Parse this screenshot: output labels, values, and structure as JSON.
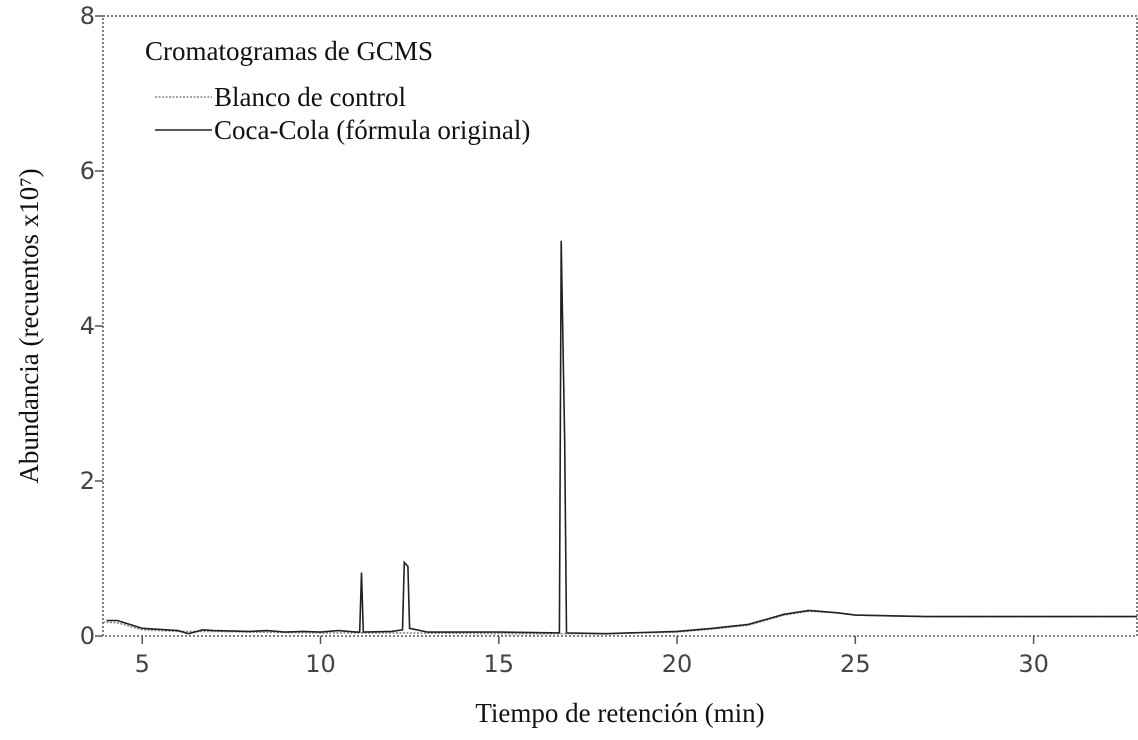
{
  "chart_data": {
    "type": "line",
    "legend_title": "Cromatogramas de GCMS",
    "xlabel": "Tiempo de retención (min)",
    "ylabel": "Abundancia (recuentos x10⁷)",
    "xlim": [
      3.9,
      32.9
    ],
    "xticks": [
      5,
      10,
      15,
      20,
      25,
      30
    ],
    "ylim": [
      0,
      8
    ],
    "yticks": [
      0,
      2,
      4,
      6,
      8
    ],
    "series": [
      {
        "name": "Blanco de control",
        "color": "#888888",
        "style": "dotted",
        "x": [
          3.9,
          4.3,
          5,
          6,
          7,
          8,
          10,
          12,
          15,
          18,
          20,
          21,
          22,
          23,
          23.7,
          24.5,
          25,
          27,
          32.9
        ],
        "values": [
          0.18,
          0.17,
          0.08,
          0.06,
          0.06,
          0.05,
          0.04,
          0.04,
          0.03,
          0.03,
          0.05,
          0.09,
          0.14,
          0.27,
          0.32,
          0.3,
          0.27,
          0.25,
          0.25
        ]
      },
      {
        "name": "Coca-Cola (fórmula original)",
        "color": "#222222",
        "style": "solid",
        "x": [
          4.0,
          4.3,
          5,
          6,
          6.3,
          6.7,
          7,
          8,
          8.5,
          9,
          9.5,
          10,
          10.5,
          11,
          11.1,
          11.15,
          11.2,
          12,
          12.3,
          12.35,
          12.45,
          12.5,
          13,
          15,
          16.7,
          16.75,
          16.85,
          16.9,
          18,
          20,
          21,
          22,
          23,
          23.7,
          24.5,
          25,
          27,
          32.9
        ],
        "values": [
          0.2,
          0.2,
          0.1,
          0.07,
          0.03,
          0.08,
          0.07,
          0.06,
          0.07,
          0.05,
          0.06,
          0.05,
          0.07,
          0.05,
          0.05,
          0.82,
          0.05,
          0.06,
          0.08,
          0.95,
          0.9,
          0.1,
          0.05,
          0.05,
          0.04,
          5.1,
          2.5,
          0.04,
          0.03,
          0.06,
          0.1,
          0.15,
          0.28,
          0.33,
          0.3,
          0.27,
          0.25,
          0.25
        ]
      }
    ]
  }
}
